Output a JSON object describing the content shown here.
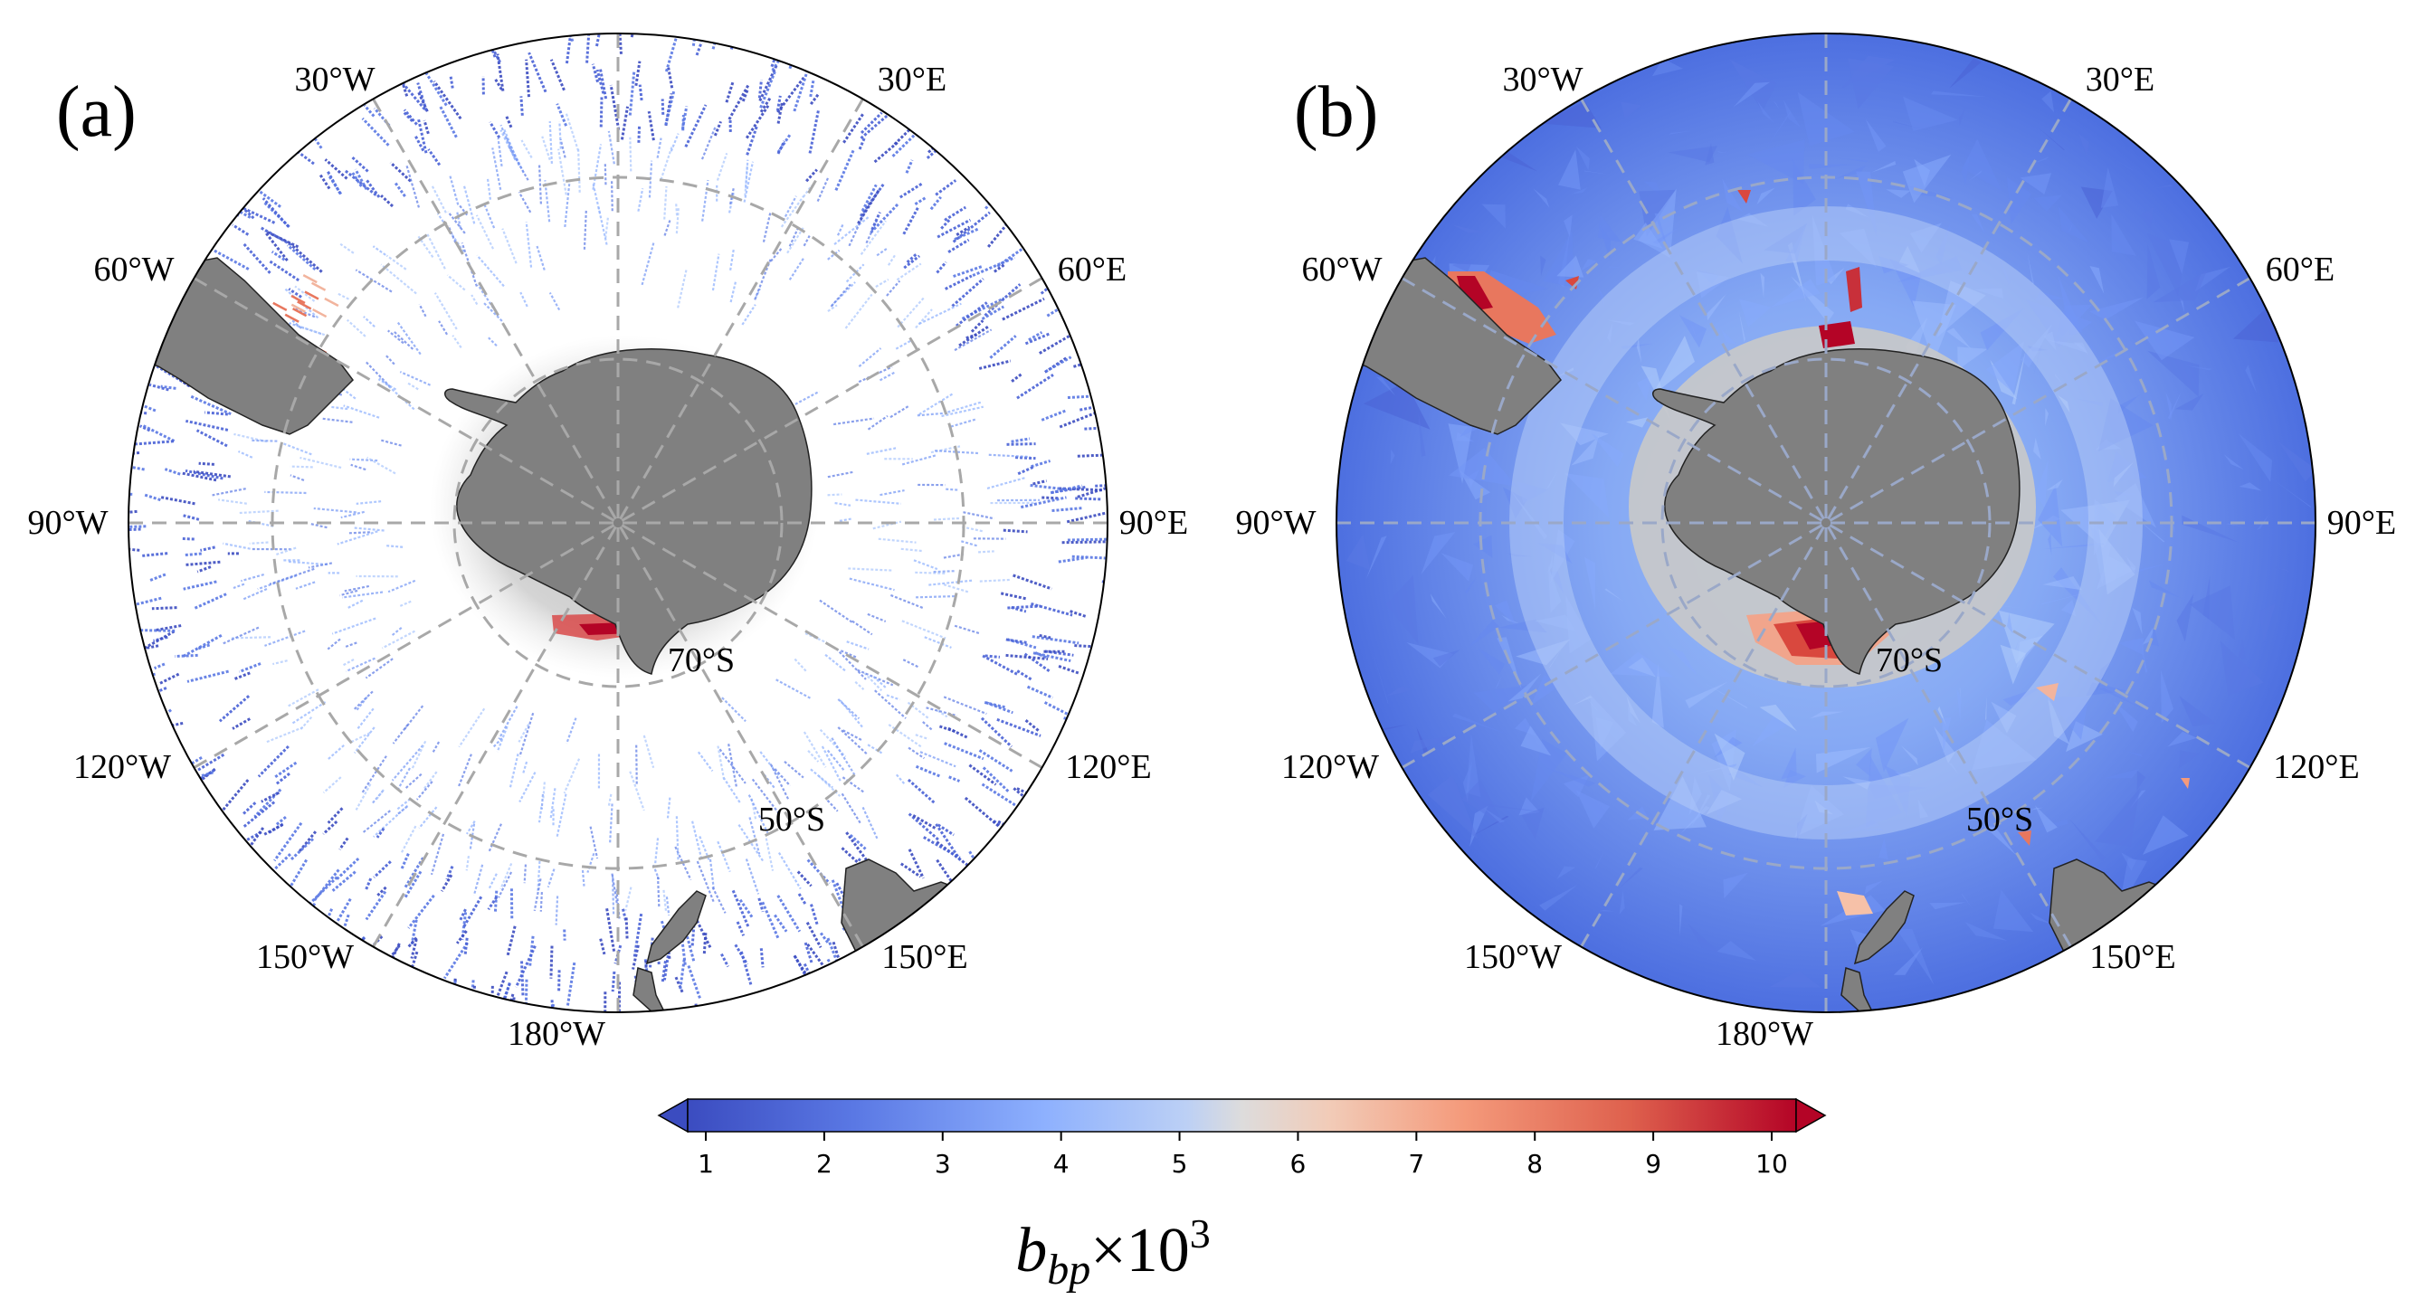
{
  "panels": [
    {
      "id": "a",
      "label": "(a)",
      "description_type": "sparse along-track observations",
      "lon_labels": {
        "w30": "30°W",
        "e30": "30°E",
        "w60": "60°W",
        "e60": "60°E",
        "w90": "90°W",
        "e90": "90°E",
        "w120": "120°W",
        "e120": "120°E",
        "w150": "150°W",
        "e150": "150°E",
        "w180": "180°W"
      },
      "lat_labels": {
        "s70": "70°S",
        "s50": "50°S"
      }
    },
    {
      "id": "b",
      "label": "(b)",
      "description_type": "gap-filled field",
      "lon_labels": {
        "w30": "30°W",
        "e30": "30°E",
        "w60": "60°W",
        "e60": "60°E",
        "w90": "90°W",
        "e90": "90°E",
        "w120": "120°W",
        "e120": "120°E",
        "w150": "150°W",
        "e150": "150°E",
        "w180": "180°W"
      },
      "lat_labels": {
        "s70": "70°S",
        "s50": "50°S"
      }
    }
  ],
  "colorbar": {
    "colormap": "coolwarm",
    "min": 1,
    "max": 10,
    "extend": "both",
    "ticks": [
      "1",
      "2",
      "3",
      "4",
      "5",
      "6",
      "7",
      "8",
      "9",
      "10"
    ],
    "label_main": "b",
    "label_sub": "bp",
    "label_rest": "×10",
    "label_sup": "3",
    "colors": {
      "low": "#3b4cc0",
      "midlow": "#8db0fe",
      "mid": "#dddcdc",
      "midhigh": "#f49a7b",
      "high": "#b40426"
    }
  },
  "colors": {
    "land": "#808080",
    "ice_shelf": "#c8c8c8",
    "ocean_b": "#4f72e3",
    "grid": "#a8a8a8"
  }
}
